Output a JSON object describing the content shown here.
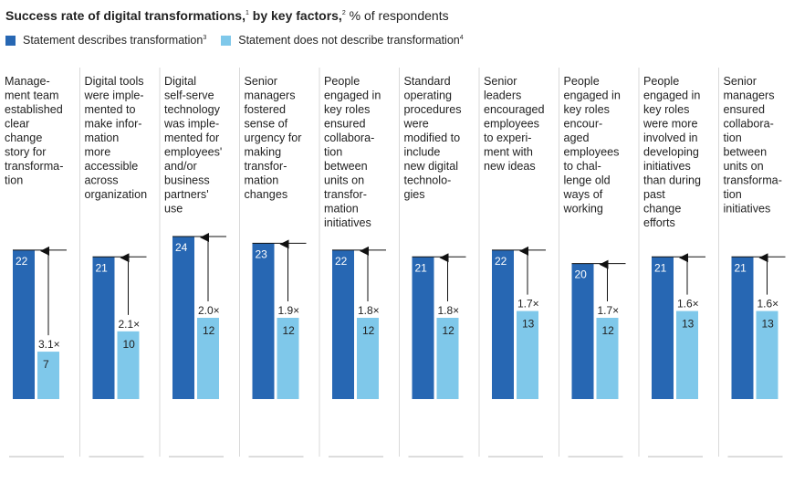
{
  "title": {
    "bold": "Success rate of digital transformations,",
    "fn1": "1",
    "bold2": "by key factors,",
    "fn2": "2",
    "rest": "% of respondents"
  },
  "legend": {
    "describes": {
      "label": "Statement describes transformation",
      "fn": "3",
      "color": "#2767b3"
    },
    "not_describes": {
      "label": "Statement does not describe transformation",
      "fn": "4",
      "color": "#7fc8ea"
    }
  },
  "chart_data": {
    "type": "bar",
    "ylim": [
      0,
      24
    ],
    "categories": [
      [
        "Manage-",
        "ment team",
        "established",
        "clear",
        "change",
        "story for",
        "transforma-",
        "tion"
      ],
      [
        "Digital tools",
        "were imple-",
        "mented to",
        "make infor-",
        "mation",
        "more",
        "accessible",
        "across",
        "organization"
      ],
      [
        "Digital",
        "self-serve",
        "technology",
        "was imple-",
        "mented for",
        "employees'",
        "and/or",
        "business",
        "partners'",
        "use"
      ],
      [
        "Senior",
        "managers",
        "fostered",
        "sense of",
        "urgency for",
        "making",
        "transfor-",
        "mation",
        "changes"
      ],
      [
        "People",
        "engaged in",
        "key roles",
        "ensured",
        "collabora-",
        "tion",
        "between",
        "units on",
        "transfor-",
        "mation",
        "initiatives"
      ],
      [
        "Standard",
        "operating",
        "procedures",
        "were",
        "modified to",
        "include",
        "new digital",
        "technolo-",
        "gies"
      ],
      [
        "Senior",
        "leaders",
        "encouraged",
        "employees",
        "to experi-",
        "ment with",
        "new ideas"
      ],
      [
        "People",
        "engaged in",
        "key roles",
        "encour-",
        "aged",
        "employees",
        "to chal-",
        "lenge old",
        "ways of",
        "working"
      ],
      [
        "People",
        "engaged in",
        "key roles",
        "were more",
        "involved in",
        "developing",
        "initiatives",
        "than during",
        "past",
        "change",
        "efforts"
      ],
      [
        "Senior",
        "managers",
        "ensured",
        "collabora-",
        "tion",
        "between",
        "units on",
        "transforma-",
        "tion",
        "initiatives"
      ]
    ],
    "series": [
      {
        "name": "Statement describes transformation",
        "color": "#2767b3",
        "values": [
          22,
          21,
          24,
          23,
          22,
          21,
          22,
          20,
          21,
          21
        ]
      },
      {
        "name": "Statement does not describe transformation",
        "color": "#7fc8ea",
        "values": [
          7,
          10,
          12,
          12,
          12,
          12,
          13,
          12,
          13,
          13
        ]
      }
    ],
    "multipliers": [
      "3.1×",
      "2.1×",
      "2.0×",
      "1.9×",
      "1.8×",
      "1.8×",
      "1.7×",
      "1.7×",
      "1.6×",
      "1.6×"
    ]
  }
}
